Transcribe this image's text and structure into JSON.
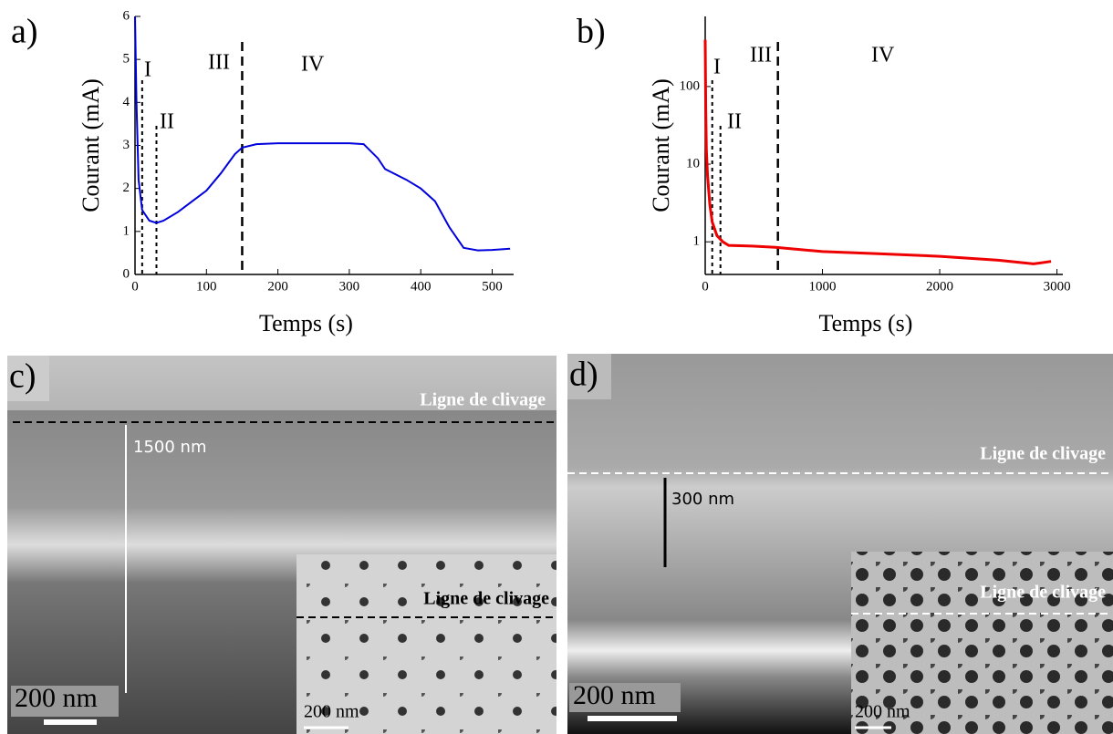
{
  "chart_data": [
    {
      "type": "line",
      "panel_label": "a)",
      "xlabel": "Temps (s)",
      "ylabel": "Courant (mA)",
      "color": "#0000dd",
      "yscale": "linear",
      "x": [
        0,
        2,
        5,
        10,
        20,
        30,
        40,
        60,
        80,
        100,
        120,
        140,
        150,
        170,
        200,
        250,
        300,
        320,
        340,
        350,
        380,
        400,
        420,
        440,
        460,
        480,
        500,
        525
      ],
      "values": [
        6,
        4,
        2.2,
        1.5,
        1.25,
        1.2,
        1.25,
        1.45,
        1.7,
        1.95,
        2.35,
        2.8,
        2.95,
        3.03,
        3.05,
        3.05,
        3.05,
        3.03,
        2.7,
        2.45,
        2.2,
        2.0,
        1.7,
        1.1,
        0.62,
        0.56,
        0.57,
        0.6
      ],
      "xlim": [
        0,
        530
      ],
      "ylim": [
        0,
        6
      ],
      "xticks": [
        0,
        100,
        200,
        300,
        400,
        500
      ],
      "yticks": [
        0,
        1,
        2,
        3,
        4,
        5,
        6
      ],
      "vlines": [
        10,
        30,
        150
      ],
      "region_labels": [
        "I",
        "II",
        "III",
        "IV"
      ]
    },
    {
      "type": "line",
      "panel_label": "b)",
      "xlabel": "Temps (s)",
      "ylabel": "Courant (mA)",
      "color": "#ee0000",
      "yscale": "log",
      "x": [
        0,
        5,
        10,
        20,
        40,
        60,
        100,
        150,
        200,
        400,
        600,
        1000,
        1500,
        2000,
        2500,
        2800,
        2950
      ],
      "values": [
        400,
        50,
        15,
        7,
        3,
        1.8,
        1.2,
        1.0,
        0.9,
        0.88,
        0.85,
        0.75,
        0.7,
        0.65,
        0.58,
        0.52,
        0.56
      ],
      "xlim": [
        0,
        3050
      ],
      "ylim": [
        0.38,
        800
      ],
      "xticks": [
        0,
        1000,
        2000,
        3000
      ],
      "yticks": [
        1,
        10,
        100
      ],
      "vlines": [
        60,
        130,
        620
      ],
      "region_labels": [
        "I",
        "II",
        "III",
        "IV"
      ]
    }
  ],
  "images": [
    {
      "panel_label": "c)",
      "line_label": "Ligne de clivage",
      "thickness": "1500 nm",
      "scale_bar": "200 nm",
      "inset": {
        "line_label": "Ligne de clivage",
        "scale_bar": "200 nm"
      }
    },
    {
      "panel_label": "d)",
      "line_label": "Ligne de clivage",
      "thickness": "300 nm",
      "scale_bar": "200 nm",
      "inset": {
        "line_label": "Ligne de clivage",
        "scale_bar": "200 nm"
      }
    }
  ]
}
